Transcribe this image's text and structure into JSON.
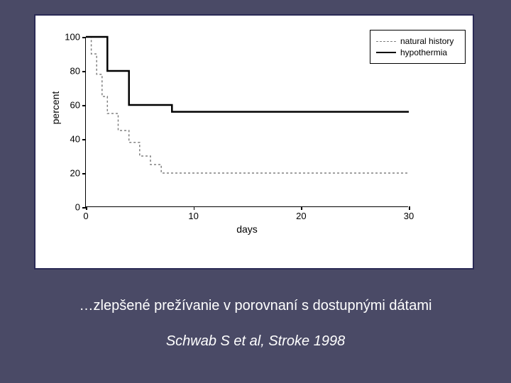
{
  "slide": {
    "background_color": "#4a4a66",
    "text_color": "#ffffff",
    "caption": "…zlepšené prežívanie v porovnaní s dostupnými dátami",
    "citation": "Schwab S et al, Stroke 1998"
  },
  "chart": {
    "type": "line",
    "panel_border_color": "#2a2a55",
    "panel_background": "#ffffff",
    "ylabel": "percent",
    "xlabel": "days",
    "xlim": [
      0,
      30
    ],
    "ylim": [
      0,
      100
    ],
    "xticks": [
      0,
      10,
      20,
      30
    ],
    "yticks": [
      0,
      20,
      40,
      60,
      80,
      100
    ],
    "axis_color": "#000000",
    "tick_fontsize": 13,
    "label_fontsize": 14,
    "series": [
      {
        "name": "natural history",
        "color": "#808080",
        "dash": "3,3",
        "width": 1.5,
        "points": [
          [
            0,
            100
          ],
          [
            0.5,
            100
          ],
          [
            0.5,
            90
          ],
          [
            1,
            90
          ],
          [
            1,
            78
          ],
          [
            1.5,
            78
          ],
          [
            1.5,
            65
          ],
          [
            2,
            65
          ],
          [
            2,
            55
          ],
          [
            3,
            55
          ],
          [
            3,
            45
          ],
          [
            4,
            45
          ],
          [
            4,
            38
          ],
          [
            5,
            38
          ],
          [
            5,
            30
          ],
          [
            6,
            30
          ],
          [
            6,
            25
          ],
          [
            7,
            25
          ],
          [
            7,
            20
          ],
          [
            30,
            20
          ]
        ]
      },
      {
        "name": "hypothermia",
        "color": "#000000",
        "dash": "",
        "width": 2.5,
        "points": [
          [
            0,
            100
          ],
          [
            2,
            100
          ],
          [
            2,
            80
          ],
          [
            4,
            80
          ],
          [
            4,
            60
          ],
          [
            8,
            60
          ],
          [
            8,
            56
          ],
          [
            30,
            56
          ]
        ]
      }
    ],
    "legend": {
      "position": "top-right",
      "border_color": "#000000",
      "fontsize": 12
    }
  }
}
